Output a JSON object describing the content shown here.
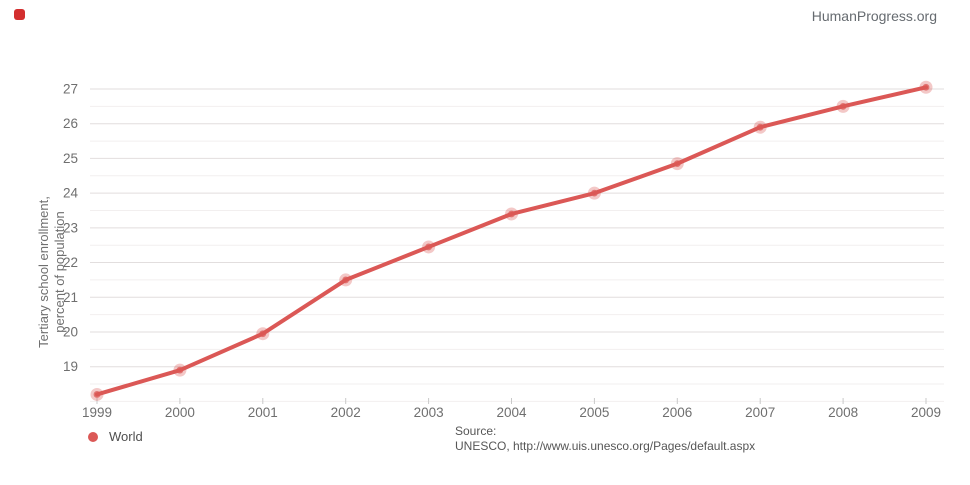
{
  "branding": {
    "site": "HumanProgress.org"
  },
  "colors": {
    "accent": "#db5856",
    "grid_major": "#e2dede",
    "grid_minor": "#f2efef",
    "tick": "#c9c9c9",
    "axis_text": "#6f6f6f"
  },
  "chart_data": {
    "type": "line",
    "title": "",
    "ylabel": "Tertiary school enrollment, percent of population",
    "ylabel_line1": "Tertiary school enrollment,",
    "ylabel_line2": "percent of population",
    "x": [
      1999,
      2000,
      2001,
      2002,
      2003,
      2004,
      2005,
      2006,
      2007,
      2008,
      2009
    ],
    "series": [
      {
        "name": "World",
        "color": "#db5856",
        "values": [
          18.2,
          18.9,
          19.95,
          21.5,
          22.45,
          23.4,
          24.0,
          24.85,
          25.9,
          26.5,
          27.05
        ]
      }
    ],
    "ylim": [
      18,
      27.6
    ],
    "yticks": [
      19,
      20,
      21,
      22,
      23,
      24,
      25,
      26,
      27
    ],
    "grid": "horizontal, major with half-step minor lines",
    "legend_position": "bottom-left"
  },
  "legend": {
    "world_label": "World"
  },
  "source": {
    "line1": "Source:",
    "line2": "UNESCO, http://www.uis.unesco.org/Pages/default.aspx"
  }
}
